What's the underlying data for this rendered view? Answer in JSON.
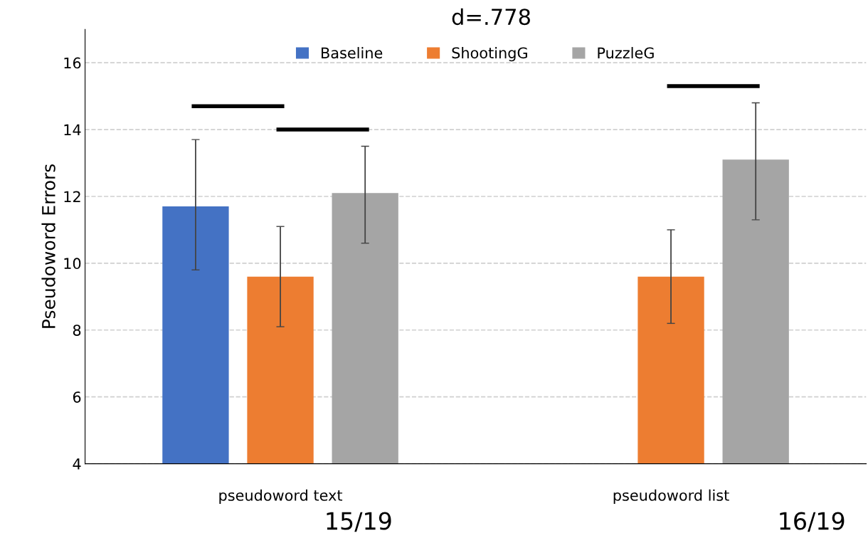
{
  "chart_data": {
    "type": "bar",
    "title": "d=.778",
    "ylabel": "Pseudoword Errors",
    "categories": [
      "pseudoword text",
      "pseudoword list"
    ],
    "series": [
      {
        "name": "Baseline",
        "color": "#4472c4",
        "values": [
          11.7,
          null
        ],
        "errors": [
          [
            9.8,
            13.7
          ],
          null
        ]
      },
      {
        "name": "ShootingG",
        "color": "#ed7d31",
        "values": [
          9.6,
          9.6
        ],
        "errors": [
          [
            8.1,
            11.1
          ],
          [
            8.2,
            11.0
          ]
        ]
      },
      {
        "name": "PuzzleG",
        "color": "#a5a5a5",
        "values": [
          12.1,
          13.1
        ],
        "errors": [
          [
            10.6,
            13.5
          ],
          [
            11.3,
            14.8
          ]
        ]
      }
    ],
    "ylim": [
      4,
      17
    ],
    "yticks": [
      4,
      6,
      8,
      10,
      12,
      14,
      16
    ],
    "grid": "y",
    "legend": "top",
    "annotations": [
      "15/19",
      "16/19"
    ]
  }
}
